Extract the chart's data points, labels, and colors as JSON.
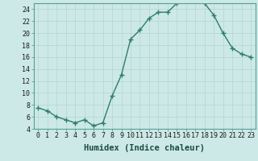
{
  "x": [
    0,
    1,
    2,
    3,
    4,
    5,
    6,
    7,
    8,
    9,
    10,
    11,
    12,
    13,
    14,
    15,
    16,
    17,
    18,
    19,
    20,
    21,
    22,
    23
  ],
  "y": [
    7.5,
    7.0,
    6.0,
    5.5,
    5.0,
    5.5,
    4.5,
    5.0,
    9.5,
    13.0,
    19.0,
    20.5,
    22.5,
    23.5,
    23.5,
    25.0,
    25.5,
    25.5,
    25.0,
    23.0,
    20.0,
    17.5,
    16.5,
    16.0
  ],
  "line_color": "#2e7d6e",
  "marker": "+",
  "marker_size": 4,
  "bg_color": "#cce9e7",
  "grid_color": "#b8d8d5",
  "xlabel": "Humidex (Indice chaleur)",
  "ylim": [
    4,
    25
  ],
  "xlim": [
    -0.5,
    23.5
  ],
  "yticks": [
    4,
    6,
    8,
    10,
    12,
    14,
    16,
    18,
    20,
    22,
    24
  ],
  "xticks": [
    0,
    1,
    2,
    3,
    4,
    5,
    6,
    7,
    8,
    9,
    10,
    11,
    12,
    13,
    14,
    15,
    16,
    17,
    18,
    19,
    20,
    21,
    22,
    23
  ],
  "xlabel_fontsize": 7.5,
  "tick_fontsize": 6,
  "line_width": 1.0,
  "marker_color": "#2e7d6e"
}
